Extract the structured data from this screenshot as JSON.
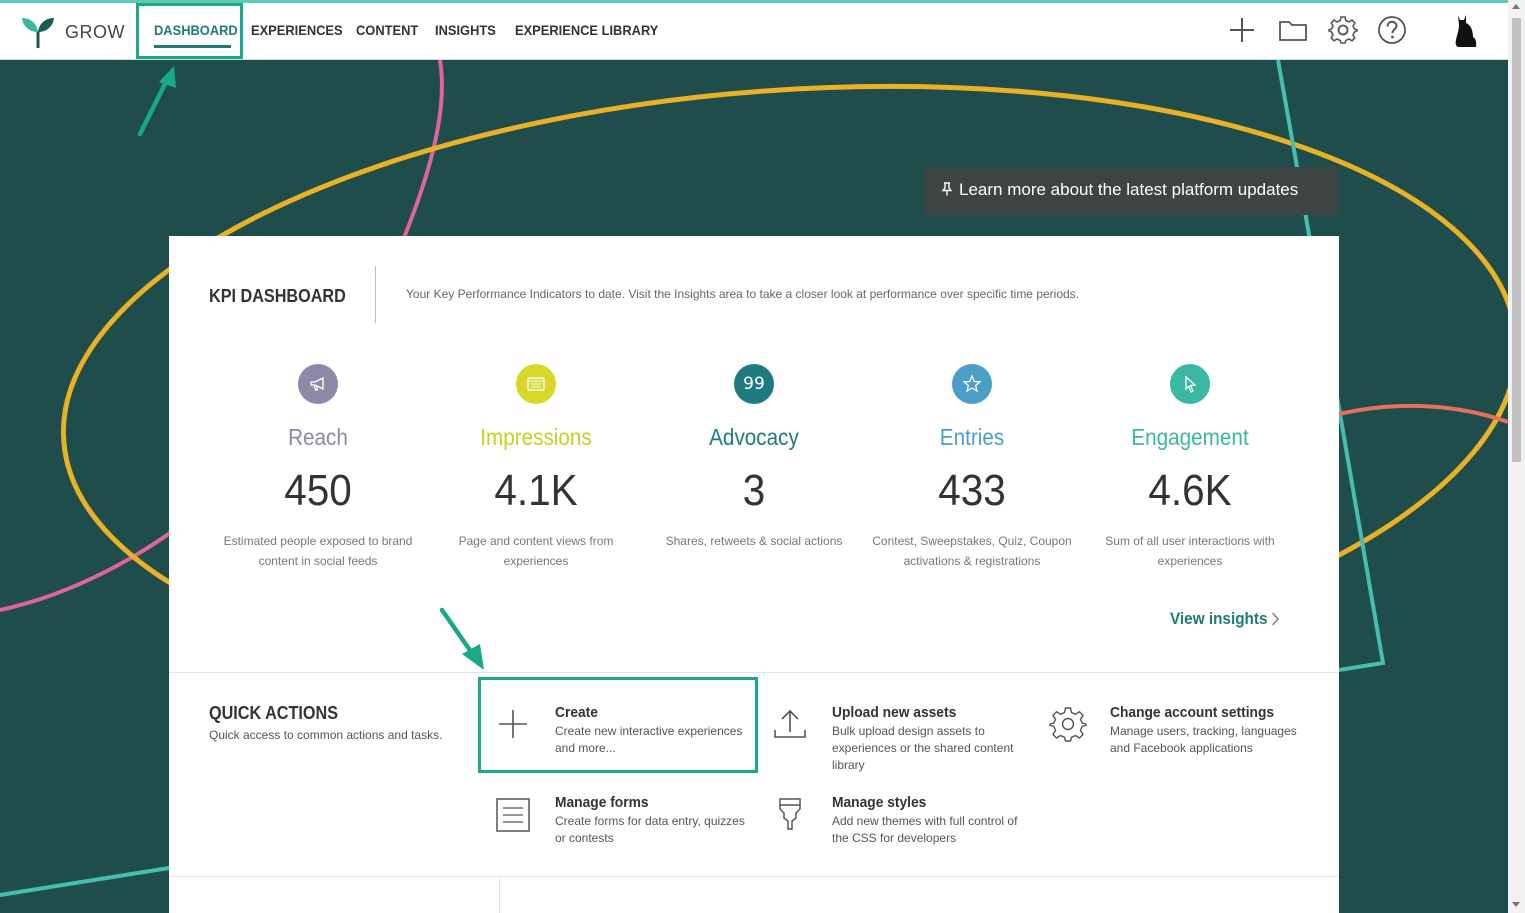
{
  "app": {
    "brand": "GROW"
  },
  "nav": {
    "items": [
      {
        "label": "DASHBOARD",
        "active": true
      },
      {
        "label": "EXPERIENCES"
      },
      {
        "label": "CONTENT"
      },
      {
        "label": "INSIGHTS"
      },
      {
        "label": "EXPERIENCE LIBRARY"
      }
    ],
    "icons": [
      "plus-icon",
      "folder-icon",
      "gear-icon",
      "help-icon",
      "cat-avatar-icon"
    ]
  },
  "banner": {
    "text": "Learn more about the latest platform updates",
    "icon": "pin-icon"
  },
  "kpi": {
    "title": "KPI DASHBOARD",
    "description": "Your Key Performance Indicators to date. Visit the Insights area to take a closer look at performance over specific time periods.",
    "items": [
      {
        "label": "Reach",
        "value": "450",
        "sub": "Estimated people exposed to brand content in social feeds",
        "color": "#8e88a9",
        "icon": "megaphone-icon"
      },
      {
        "label": "Impressions",
        "value": "4.1K",
        "sub": "Page and content views from experiences",
        "color": "#d4d92a",
        "icon": "browser-icon"
      },
      {
        "label": "Advocacy",
        "value": "3",
        "sub": "Shares, retweets & social actions",
        "color": "#1e7c80",
        "icon": "quote-icon",
        "icon_text": "99"
      },
      {
        "label": "Entries",
        "value": "433",
        "sub": "Contest, Sweepstakes, Quiz, Coupon activations & registrations",
        "color": "#4a9fc9",
        "icon": "star-icon"
      },
      {
        "label": "Engagement",
        "value": "4.6K",
        "sub": "Sum of all user interactions with experiences",
        "color": "#3ab8a1",
        "icon": "cursor-icon"
      }
    ],
    "view_insights": "View insights"
  },
  "quick_actions": {
    "title": "QUICK ACTIONS",
    "subtitle": "Quick access to common actions and tasks.",
    "items": [
      {
        "title": "Create",
        "desc": "Create new interactive experiences and more...",
        "icon": "plus-icon"
      },
      {
        "title": "Upload new assets",
        "desc": "Bulk upload design assets to experiences or the shared content library",
        "icon": "upload-icon"
      },
      {
        "title": "Change account settings",
        "desc": "Manage users, tracking, languages and Facebook applications",
        "icon": "gear-icon"
      },
      {
        "title": "Manage forms",
        "desc": "Create forms for data entry, quizzes or contests",
        "icon": "form-icon"
      },
      {
        "title": "Manage styles",
        "desc": "Add new themes with full control of the CSS for developers",
        "icon": "brush-icon"
      }
    ]
  },
  "colors": {
    "accent": "#1e7c73",
    "background": "#1f4d4b",
    "highlight": "#18a98b"
  }
}
